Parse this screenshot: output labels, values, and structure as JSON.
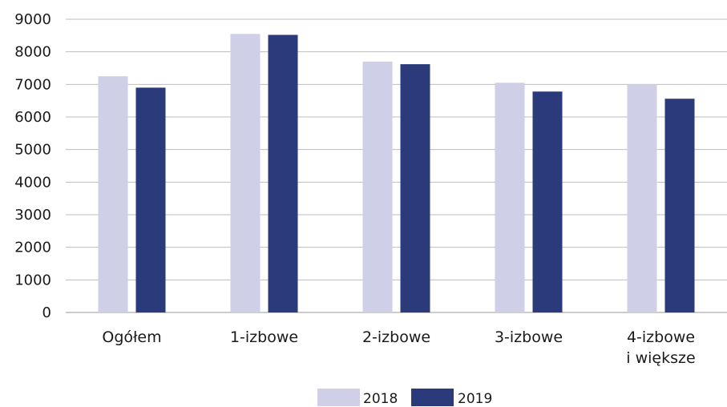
{
  "chart_data": {
    "type": "bar",
    "title": "",
    "xlabel": "",
    "ylabel": "",
    "ylim": [
      0,
      9000
    ],
    "yticks": [
      0,
      1000,
      2000,
      3000,
      4000,
      5000,
      6000,
      7000,
      8000,
      9000
    ],
    "grid": true,
    "legend_position": "bottom",
    "categories": [
      [
        "Ogółem"
      ],
      [
        "1-izbowe"
      ],
      [
        "2-izbowe"
      ],
      [
        "3-izbowe"
      ],
      [
        "4-izbowe",
        "i większe"
      ]
    ],
    "series": [
      {
        "name": "2018",
        "color": "#cfcfe8",
        "values": [
          7250,
          8550,
          7700,
          7050,
          7000
        ]
      },
      {
        "name": "2019",
        "color": "#2b3a7a",
        "values": [
          6900,
          8520,
          7620,
          6780,
          6560
        ]
      }
    ]
  }
}
